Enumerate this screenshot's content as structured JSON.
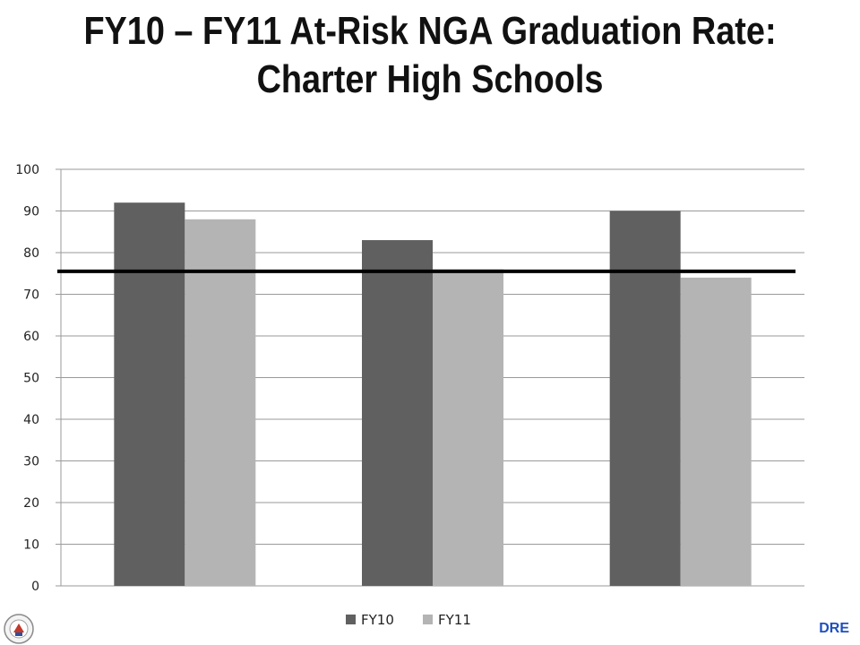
{
  "title": {
    "line1": "FY10 – FY11 At-Risk NGA Graduation Rate:",
    "line2": "Charter High Schools"
  },
  "footer": {
    "mark": "DRE"
  },
  "colors": {
    "fy10": "#606060",
    "fy11": "#b4b4b4",
    "target_line": "#000000",
    "footer_mark": "#1f4fbf"
  },
  "chart_data": {
    "type": "bar",
    "categories": [
      "",
      "",
      ""
    ],
    "series": [
      {
        "name": "FY10",
        "values": [
          92,
          83,
          90
        ]
      },
      {
        "name": "FY11",
        "values": [
          88,
          76,
          74
        ]
      }
    ],
    "reference_line": 75.5,
    "ylim": [
      0,
      100
    ],
    "yticks": [
      0,
      10,
      20,
      30,
      40,
      50,
      60,
      70,
      80,
      90,
      100
    ],
    "grid": true,
    "legend": "bottom-center"
  }
}
